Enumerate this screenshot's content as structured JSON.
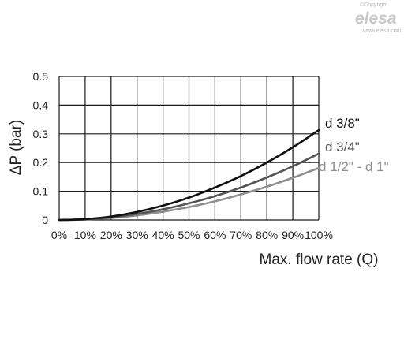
{
  "watermark": {
    "copyright": "©Copyright",
    "brand": "elesa",
    "url": "www.elesa.com"
  },
  "chart_data": {
    "type": "line",
    "title": "",
    "xlabel": "Max. flow rate (Q)",
    "ylabel": "ΔP (bar)",
    "x": [
      0,
      10,
      20,
      30,
      40,
      50,
      60,
      70,
      80,
      90,
      100
    ],
    "x_tick_labels": [
      "0%",
      "10%",
      "20%",
      "30%",
      "40%",
      "50%",
      "60%",
      "70%",
      "80%",
      "90%",
      "100%"
    ],
    "y_ticks": [
      0,
      0.1,
      0.2,
      0.3,
      0.4,
      0.5
    ],
    "y_tick_labels": [
      "0",
      "0.1",
      "0.2",
      "0.3",
      "0.4",
      "0.5"
    ],
    "xlim": [
      0,
      100
    ],
    "ylim": [
      0,
      0.5
    ],
    "grid": true,
    "legend_position": "right, at line ends",
    "series": [
      {
        "name": "d 3/8\"",
        "color": "#111111",
        "values": [
          0,
          0.003,
          0.012,
          0.028,
          0.05,
          0.078,
          0.113,
          0.153,
          0.2,
          0.253,
          0.313
        ]
      },
      {
        "name": "d 3/4\"",
        "color": "#555555",
        "values": [
          0,
          0.002,
          0.009,
          0.021,
          0.037,
          0.058,
          0.083,
          0.113,
          0.148,
          0.187,
          0.231
        ]
      },
      {
        "name": "d 1/2\" - d 1\"",
        "color": "#8e8e8e",
        "values": [
          0,
          0.002,
          0.007,
          0.016,
          0.029,
          0.045,
          0.065,
          0.089,
          0.116,
          0.147,
          0.181
        ]
      }
    ]
  }
}
